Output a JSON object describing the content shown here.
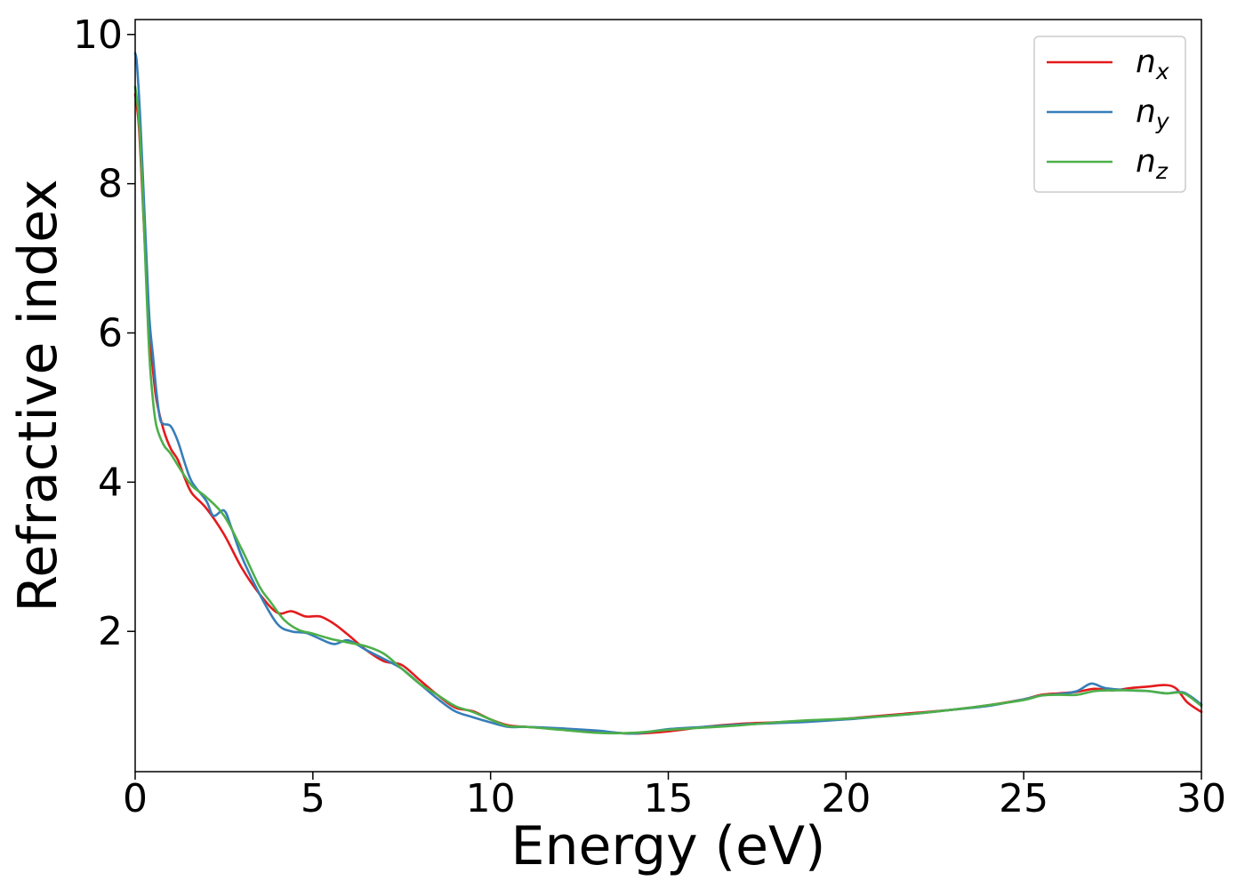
{
  "chart_data": {
    "type": "line",
    "title": "",
    "xlabel": "Energy (eV)",
    "ylabel": "Refractive index",
    "xlim": [
      0,
      30
    ],
    "ylim": [
      0.12,
      10.2
    ],
    "xticks": [
      0,
      5,
      10,
      15,
      20,
      25,
      30
    ],
    "yticks": [
      2,
      4,
      6,
      8,
      10
    ],
    "grid": false,
    "legend_position": "top-right",
    "series": [
      {
        "name": "n",
        "subscript": "x",
        "color": "#e41a1c",
        "points": [
          [
            0,
            9.2
          ],
          [
            0.1,
            8.8
          ],
          [
            0.2,
            7.9
          ],
          [
            0.3,
            6.9
          ],
          [
            0.4,
            6.0
          ],
          [
            0.5,
            5.5
          ],
          [
            0.6,
            5.1
          ],
          [
            0.8,
            4.7
          ],
          [
            1.0,
            4.45
          ],
          [
            1.2,
            4.3
          ],
          [
            1.4,
            4.05
          ],
          [
            1.6,
            3.85
          ],
          [
            2.0,
            3.65
          ],
          [
            2.5,
            3.3
          ],
          [
            3.0,
            2.85
          ],
          [
            3.5,
            2.5
          ],
          [
            4.0,
            2.25
          ],
          [
            4.4,
            2.27
          ],
          [
            4.8,
            2.2
          ],
          [
            5.2,
            2.2
          ],
          [
            5.6,
            2.1
          ],
          [
            6.0,
            1.95
          ],
          [
            6.5,
            1.75
          ],
          [
            7.0,
            1.6
          ],
          [
            7.5,
            1.55
          ],
          [
            8.0,
            1.35
          ],
          [
            8.5,
            1.15
          ],
          [
            9.0,
            0.98
          ],
          [
            9.5,
            0.93
          ],
          [
            10.0,
            0.82
          ],
          [
            10.5,
            0.74
          ],
          [
            11.0,
            0.72
          ],
          [
            12.0,
            0.69
          ],
          [
            13.0,
            0.66
          ],
          [
            14.0,
            0.63
          ],
          [
            15.0,
            0.66
          ],
          [
            16.0,
            0.72
          ],
          [
            17.0,
            0.76
          ],
          [
            18.0,
            0.78
          ],
          [
            19.0,
            0.8
          ],
          [
            20.0,
            0.83
          ],
          [
            21.0,
            0.87
          ],
          [
            22.0,
            0.91
          ],
          [
            23.0,
            0.95
          ],
          [
            24.0,
            1.01
          ],
          [
            25.0,
            1.09
          ],
          [
            25.5,
            1.15
          ],
          [
            26.0,
            1.17
          ],
          [
            26.5,
            1.19
          ],
          [
            27.0,
            1.23
          ],
          [
            27.5,
            1.21
          ],
          [
            28.0,
            1.24
          ],
          [
            28.5,
            1.26
          ],
          [
            29.0,
            1.28
          ],
          [
            29.3,
            1.23
          ],
          [
            29.6,
            1.05
          ],
          [
            30.0,
            0.92
          ]
        ]
      },
      {
        "name": "n",
        "subscript": "y",
        "color": "#377eb8",
        "points": [
          [
            0,
            9.75
          ],
          [
            0.05,
            9.6
          ],
          [
            0.15,
            8.8
          ],
          [
            0.3,
            7.2
          ],
          [
            0.4,
            6.2
          ],
          [
            0.5,
            5.7
          ],
          [
            0.6,
            5.2
          ],
          [
            0.7,
            4.85
          ],
          [
            0.8,
            4.78
          ],
          [
            1.0,
            4.75
          ],
          [
            1.2,
            4.55
          ],
          [
            1.4,
            4.25
          ],
          [
            1.6,
            4.0
          ],
          [
            2.0,
            3.75
          ],
          [
            2.2,
            3.55
          ],
          [
            2.5,
            3.62
          ],
          [
            2.7,
            3.4
          ],
          [
            3.0,
            3.0
          ],
          [
            3.5,
            2.5
          ],
          [
            4.0,
            2.1
          ],
          [
            4.4,
            2.0
          ],
          [
            4.8,
            1.98
          ],
          [
            5.2,
            1.9
          ],
          [
            5.6,
            1.83
          ],
          [
            6.0,
            1.88
          ],
          [
            6.5,
            1.75
          ],
          [
            7.0,
            1.63
          ],
          [
            7.5,
            1.5
          ],
          [
            8.0,
            1.3
          ],
          [
            8.5,
            1.1
          ],
          [
            9.0,
            0.93
          ],
          [
            9.5,
            0.85
          ],
          [
            10.0,
            0.78
          ],
          [
            10.5,
            0.72
          ],
          [
            11.0,
            0.72
          ],
          [
            12.0,
            0.7
          ],
          [
            13.0,
            0.67
          ],
          [
            14.0,
            0.63
          ],
          [
            15.0,
            0.69
          ],
          [
            16.0,
            0.72
          ],
          [
            17.0,
            0.75
          ],
          [
            18.0,
            0.77
          ],
          [
            19.0,
            0.79
          ],
          [
            20.0,
            0.82
          ],
          [
            21.0,
            0.86
          ],
          [
            22.0,
            0.9
          ],
          [
            23.0,
            0.95
          ],
          [
            24.0,
            1.0
          ],
          [
            25.0,
            1.09
          ],
          [
            25.5,
            1.14
          ],
          [
            26.0,
            1.16
          ],
          [
            26.5,
            1.2
          ],
          [
            26.9,
            1.3
          ],
          [
            27.3,
            1.24
          ],
          [
            28.0,
            1.21
          ],
          [
            28.5,
            1.2
          ],
          [
            29.0,
            1.17
          ],
          [
            29.5,
            1.18
          ],
          [
            30.0,
            1.02
          ]
        ]
      },
      {
        "name": "n",
        "subscript": "z",
        "color": "#4daf4a",
        "points": [
          [
            0,
            9.3
          ],
          [
            0.1,
            8.9
          ],
          [
            0.2,
            8.0
          ],
          [
            0.3,
            6.8
          ],
          [
            0.4,
            5.7
          ],
          [
            0.5,
            5.1
          ],
          [
            0.6,
            4.75
          ],
          [
            0.8,
            4.5
          ],
          [
            1.0,
            4.38
          ],
          [
            1.3,
            4.15
          ],
          [
            1.6,
            3.95
          ],
          [
            2.0,
            3.8
          ],
          [
            2.5,
            3.55
          ],
          [
            3.0,
            3.1
          ],
          [
            3.5,
            2.6
          ],
          [
            3.8,
            2.4
          ],
          [
            4.2,
            2.15
          ],
          [
            4.6,
            2.02
          ],
          [
            5.0,
            1.97
          ],
          [
            5.5,
            1.9
          ],
          [
            6.0,
            1.85
          ],
          [
            6.5,
            1.8
          ],
          [
            7.0,
            1.7
          ],
          [
            7.5,
            1.5
          ],
          [
            8.0,
            1.3
          ],
          [
            8.5,
            1.15
          ],
          [
            9.0,
            1.0
          ],
          [
            9.5,
            0.92
          ],
          [
            10.0,
            0.82
          ],
          [
            10.5,
            0.73
          ],
          [
            11.0,
            0.72
          ],
          [
            12.0,
            0.68
          ],
          [
            13.0,
            0.64
          ],
          [
            14.0,
            0.64
          ],
          [
            15.0,
            0.68
          ],
          [
            16.0,
            0.71
          ],
          [
            17.0,
            0.74
          ],
          [
            18.0,
            0.78
          ],
          [
            19.0,
            0.81
          ],
          [
            20.0,
            0.83
          ],
          [
            21.0,
            0.86
          ],
          [
            22.0,
            0.9
          ],
          [
            23.0,
            0.95
          ],
          [
            24.0,
            1.01
          ],
          [
            25.0,
            1.08
          ],
          [
            25.5,
            1.14
          ],
          [
            26.0,
            1.15
          ],
          [
            26.5,
            1.15
          ],
          [
            27.0,
            1.2
          ],
          [
            27.5,
            1.21
          ],
          [
            28.0,
            1.21
          ],
          [
            28.5,
            1.2
          ],
          [
            29.0,
            1.17
          ],
          [
            29.5,
            1.17
          ],
          [
            30.0,
            1.0
          ]
        ]
      }
    ]
  }
}
